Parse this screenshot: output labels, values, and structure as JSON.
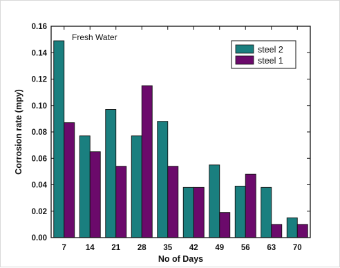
{
  "chart_data": {
    "type": "bar",
    "annotation": "Fresh Water",
    "xlabel": "No of Days",
    "ylabel": "Corrosion rate (mpy)",
    "categories": [
      "7",
      "14",
      "21",
      "28",
      "35",
      "42",
      "49",
      "56",
      "63",
      "70"
    ],
    "ylim": [
      0,
      0.16
    ],
    "yticks": [
      "0.00",
      "0.02",
      "0.04",
      "0.06",
      "0.08",
      "0.10",
      "0.12",
      "0.14",
      "0.16"
    ],
    "legend_position": "top-right",
    "series": [
      {
        "name": "steel 2",
        "color": "#1a7f7f",
        "values": [
          0.149,
          0.077,
          0.097,
          0.077,
          0.088,
          0.038,
          0.055,
          0.039,
          0.038,
          0.015
        ]
      },
      {
        "name": "steel 1",
        "color": "#6b0a6b",
        "values": [
          0.087,
          0.065,
          0.054,
          0.115,
          0.054,
          0.038,
          0.019,
          0.048,
          0.01,
          0.01
        ]
      }
    ]
  }
}
